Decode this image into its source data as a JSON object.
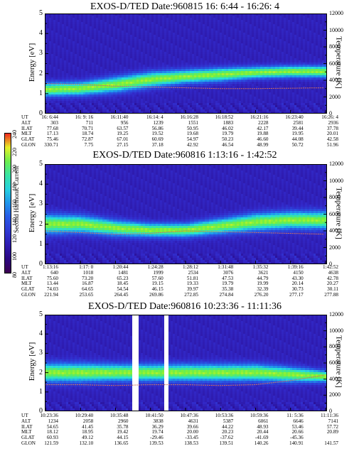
{
  "colorbar": {
    "label": "Second Harmonic Current",
    "ticks": [
      "240",
      "220",
      "200",
      "180",
      "160",
      "140",
      "120",
      "100",
      "80"
    ],
    "min": 80,
    "max": 240
  },
  "axes": {
    "energy_label": "Energy [eV]",
    "temperature_label": "Temperature [K]",
    "energy_ticks": [
      "5",
      "4",
      "3",
      "2",
      "1",
      "0"
    ],
    "temperature_ticks": [
      "12000",
      "10000",
      "8000",
      "6000",
      "4000",
      "2000",
      "0"
    ]
  },
  "panels": [
    {
      "title": "EXOS-D/TED   Date:960815  16: 6:44 - 16:26: 4",
      "orbit_labels": [
        "UT",
        "ALT",
        "ILAT",
        "MLT",
        "GLAT",
        "GLON"
      ],
      "columns": [
        [
          "16: 6:44",
          "303",
          "77.68",
          "17.13",
          "75.46",
          "330.71"
        ],
        [
          "16: 9: 16",
          "711",
          "70.71",
          "18.74",
          "72.87",
          "7.75"
        ],
        [
          "16:11:40",
          "956",
          "63.57",
          "19.25",
          "67.01",
          "27.15"
        ],
        [
          "16:14: 4",
          "1239",
          "56.86",
          "19.52",
          "60.69",
          "37.18"
        ],
        [
          "16:16:28",
          "1551",
          "50.95",
          "19.68",
          "54.97",
          "42.92"
        ],
        [
          "16:18:52",
          "1883",
          "46.02",
          "19.79",
          "50.23",
          "46.54"
        ],
        [
          "16:21:16",
          "2228",
          "42.17",
          "19.88",
          "46.60",
          "48.99"
        ],
        [
          "16:23:40",
          "2581",
          "39.44",
          "19.95",
          "44.08",
          "50.72"
        ],
        [
          "16:26: 4",
          "2936",
          "37.78",
          "20.01",
          "42.58",
          "51.96"
        ]
      ]
    },
    {
      "title": "EXOS-D/TED   Date:960816   1:13:16 - 1:42:52",
      "orbit_labels": [
        "UT",
        "ALT",
        "ILAT",
        "MLT",
        "GLAT",
        "GLON"
      ],
      "columns": [
        [
          "1:13:16",
          "640",
          "75.60",
          "13.44",
          "74.03",
          "221.94"
        ],
        [
          "1:17: 0",
          "1018",
          "73.20",
          "16.87",
          "64.65",
          "253.65"
        ],
        [
          "1:20:44",
          "1481",
          "65.23",
          "18.45",
          "54.54",
          "264.45"
        ],
        [
          "1:24:28",
          "1999",
          "57.60",
          "19.15",
          "46.15",
          "269.86"
        ],
        [
          "1:28:12",
          "2534",
          "51.81",
          "19.33",
          "39.97",
          "272.85"
        ],
        [
          "1:31:48",
          "3076",
          "47.53",
          "19.79",
          "35.38",
          "274.84"
        ],
        [
          "1:35:32",
          "3621",
          "44.79",
          "19.99",
          "32.39",
          "276.20"
        ],
        [
          "1:39:16",
          "4150",
          "43.30",
          "20.14",
          "30.73",
          "277.17"
        ],
        [
          "1:42:52",
          "4638",
          "42.78",
          "20.27",
          "30.11",
          "277.88"
        ]
      ]
    },
    {
      "title": "EXOS-D/TED   Date:960816   10:23:36 - 11:11:36",
      "orbit_labels": [
        "UT",
        "ALT",
        "ILAT",
        "MLT",
        "GLAT",
        "GLON"
      ],
      "columns": [
        [
          "10:23:36",
          "1234",
          "54.65",
          "18.12",
          "60.93",
          "121.59"
        ],
        [
          "10:29:40",
          "2058",
          "41.45",
          "18.95",
          "49.12",
          "132.10"
        ],
        [
          "10:35:48",
          "2960",
          "35.78",
          "19.42",
          "44.15",
          "136.65"
        ],
        [
          "10:41:50",
          "3838",
          "36.29",
          "19.74",
          "-29.46",
          "139.53"
        ],
        [
          "10:47:36",
          "4631",
          "39.66",
          "20.00",
          "-33.45",
          "138.53"
        ],
        [
          "10:53:36",
          "5387",
          "44.22",
          "20.23",
          "-37.62",
          "139.51"
        ],
        [
          "10:59:36",
          "6061",
          "48.93",
          "20.44",
          "-41.69",
          "140.26"
        ],
        [
          "11: 5:36",
          "6646",
          "53.46",
          "20.66",
          "-45.36",
          "140.91"
        ],
        [
          "11:11:36",
          "7141",
          "57.72",
          "20.89",
          "",
          "141.57"
        ]
      ]
    }
  ],
  "chart_data": [
    {
      "type": "heatmap",
      "title": "EXOS-D/TED   Date:960815  16: 6:44 - 16:26: 4",
      "ylabel": "Energy [eV]",
      "ylabel_right": "Temperature [K]",
      "ylim": [
        0,
        5
      ],
      "ylim_right": [
        0,
        12000
      ],
      "x_ticks": [
        "16: 6:44",
        "16: 9: 16",
        "16:11:40",
        "16:14: 4",
        "16:16:28",
        "16:18:52",
        "16:21:16",
        "16:23:40",
        "16:26: 4"
      ],
      "band_center_eV": [
        1.2,
        1.25,
        1.45,
        1.7,
        1.85,
        1.95,
        2.05,
        2.1,
        2.1
      ],
      "band_halfwidth_eV": [
        0.35,
        0.35,
        0.4,
        0.4,
        0.35,
        0.35,
        0.3,
        0.3,
        0.3
      ],
      "temperature_K": [
        3600,
        3500,
        3300,
        3200,
        3100,
        3000,
        3000,
        3050,
        3100
      ]
    },
    {
      "type": "heatmap",
      "title": "EXOS-D/TED   Date:960816   1:13:16 - 1:42:52",
      "ylabel": "Energy [eV]",
      "ylabel_right": "Temperature [K]",
      "ylim": [
        0,
        5
      ],
      "ylim_right": [
        0,
        12000
      ],
      "x_ticks": [
        "1:13:16",
        "1:17: 0",
        "1:20:44",
        "1:24:28",
        "1:28:12",
        "1:31:48",
        "1:35:32",
        "1:39:16",
        "1:42:52"
      ],
      "band_center_eV": [
        2.0,
        2.0,
        1.8,
        1.7,
        1.7,
        1.9,
        2.1,
        2.2,
        2.2
      ],
      "band_halfwidth_eV": [
        0.5,
        0.45,
        0.4,
        0.35,
        0.35,
        0.4,
        0.45,
        0.45,
        0.45
      ],
      "temperature_K": [
        4000,
        3800,
        3600,
        3700,
        4000,
        3900,
        3800,
        3700,
        3600
      ]
    },
    {
      "type": "heatmap",
      "title": "EXOS-D/TED   Date:960816   10:23:36 - 11:11:36",
      "ylabel": "Energy [eV]",
      "ylabel_right": "Temperature [K]",
      "ylim": [
        0,
        5
      ],
      "ylim_right": [
        0,
        12000
      ],
      "x_ticks": [
        "10:23:36",
        "10:29:40",
        "10:35:48",
        "10:41:50",
        "10:47:36",
        "10:53:36",
        "10:59:36",
        "11: 5:36",
        "11:11:36"
      ],
      "band_center_eV": [
        2.0,
        2.0,
        2.0,
        2.0,
        2.0,
        2.0,
        2.0,
        1.9,
        1.8
      ],
      "band_halfwidth_eV": [
        0.5,
        0.5,
        0.45,
        0.45,
        0.45,
        0.45,
        0.45,
        0.4,
        0.3
      ],
      "temperature_K": [
        3300,
        3300,
        3200,
        3300,
        3300,
        3200,
        3300,
        3800,
        4500
      ],
      "data_gaps": [
        [
          0.31,
          0.33
        ],
        [
          0.42,
          0.44
        ]
      ]
    }
  ]
}
